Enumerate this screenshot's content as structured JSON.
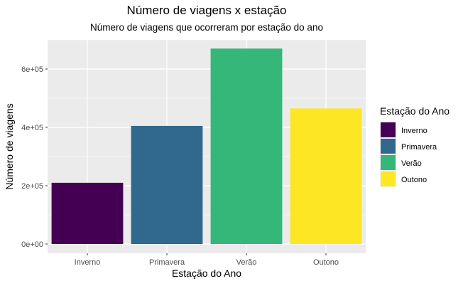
{
  "chart_data": {
    "type": "bar",
    "title": "Número de viagens x estação",
    "subtitle": "Número de viagens que ocorreram por estação do ano",
    "xlabel": "Estação do Ano",
    "ylabel": "Número de viagens",
    "categories": [
      "Inverno",
      "Primavera",
      "Verão",
      "Outono"
    ],
    "values": [
      210000,
      405000,
      670000,
      465000
    ],
    "colors": [
      "#440154",
      "#31688E",
      "#35B779",
      "#FDE725"
    ],
    "ylim": [
      0,
      700000
    ],
    "yticks": [
      0,
      200000,
      400000,
      600000
    ],
    "ytick_labels": [
      "0e+00",
      "2e+05",
      "4e+05",
      "6e+05"
    ],
    "grid": true,
    "panel_background": "#EBEBEB",
    "legend": {
      "title": "Estação do Ano",
      "placement": "right",
      "entries": [
        "Inverno",
        "Primavera",
        "Verão",
        "Outono"
      ]
    }
  }
}
